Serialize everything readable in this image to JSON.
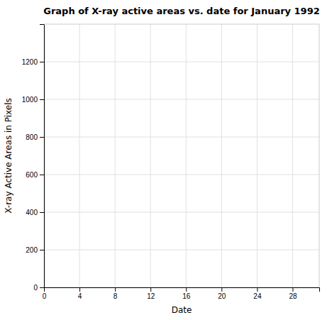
{
  "chart_data": {
    "type": "line",
    "title": "Graph of X-ray active areas vs. date for January 1992",
    "xlabel": "Date",
    "ylabel": "X-ray Active Areas in Pixels",
    "xlim": [
      0,
      31
    ],
    "ylim": [
      0,
      1400
    ],
    "xticks": [
      0,
      4,
      8,
      12,
      16,
      20,
      24,
      28
    ],
    "yticks": [
      0,
      200,
      400,
      600,
      800,
      1000,
      1200
    ],
    "grid": true,
    "series": []
  }
}
